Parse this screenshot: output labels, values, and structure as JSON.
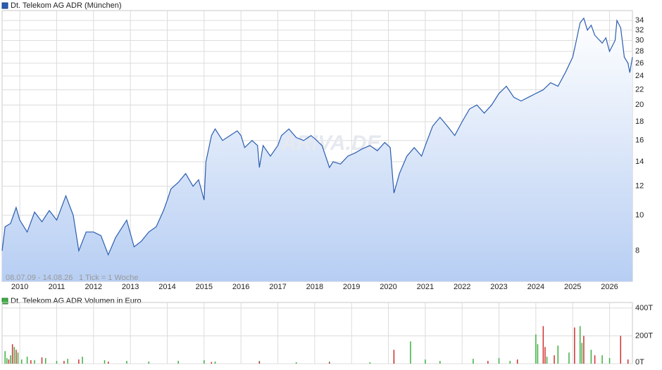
{
  "chart_data": [
    {
      "type": "area",
      "log_y": true,
      "grid": true,
      "range_label": "08.07.09 - 14.08.26",
      "tick_note": "1 Tick = 1 Woche",
      "watermark": "ARIVA.DE",
      "xlim": [
        2009.52,
        2026.62
      ],
      "xticks": [
        2010,
        2011,
        2012,
        2013,
        2014,
        2015,
        2016,
        2017,
        2018,
        2019,
        2020,
        2021,
        2022,
        2023,
        2024,
        2025,
        2026
      ],
      "ylim": [
        6.6,
        36.2
      ],
      "yticks": [
        8,
        10,
        12,
        14,
        16,
        18,
        20,
        22,
        24,
        26,
        28,
        30,
        32,
        34
      ],
      "x": [
        2009.52,
        2009.6,
        2009.75,
        2009.9,
        2010.0,
        2010.2,
        2010.4,
        2010.6,
        2010.8,
        2011.0,
        2011.25,
        2011.45,
        2011.6,
        2011.8,
        2012.0,
        2012.2,
        2012.4,
        2012.6,
        2012.9,
        2013.1,
        2013.3,
        2013.5,
        2013.7,
        2013.9,
        2014.0,
        2014.1,
        2014.3,
        2014.5,
        2014.7,
        2014.85,
        2015.0,
        2015.05,
        2015.2,
        2015.3,
        2015.5,
        2015.7,
        2015.9,
        2016.0,
        2016.1,
        2016.3,
        2016.45,
        2016.5,
        2016.6,
        2016.8,
        2017.0,
        2017.1,
        2017.3,
        2017.5,
        2017.7,
        2017.9,
        2018.0,
        2018.2,
        2018.4,
        2018.5,
        2018.7,
        2018.9,
        2019.1,
        2019.3,
        2019.5,
        2019.7,
        2019.9,
        2020.05,
        2020.15,
        2020.3,
        2020.5,
        2020.7,
        2020.9,
        2021.0,
        2021.2,
        2021.4,
        2021.6,
        2021.8,
        2022.0,
        2022.2,
        2022.4,
        2022.6,
        2022.8,
        2023.0,
        2023.2,
        2023.4,
        2023.6,
        2023.8,
        2024.0,
        2024.2,
        2024.4,
        2024.6,
        2024.8,
        2025.0,
        2025.1,
        2025.2,
        2025.3,
        2025.4,
        2025.5,
        2025.6,
        2025.8,
        2025.9,
        2026.0,
        2026.15,
        2026.2,
        2026.3,
        2026.4,
        2026.5,
        2026.55,
        2026.62
      ],
      "series": [
        {
          "name": "Dt. Telekom AG ADR (München)",
          "color": "#2a5db0",
          "values": [
            8.0,
            9.3,
            9.5,
            10.5,
            9.7,
            9.0,
            10.2,
            9.6,
            10.3,
            9.7,
            11.3,
            10.0,
            8.0,
            9.0,
            9.0,
            8.8,
            7.8,
            8.7,
            9.7,
            8.2,
            8.5,
            9.0,
            9.3,
            10.3,
            11.0,
            11.8,
            12.3,
            13.0,
            12.0,
            12.5,
            11.0,
            14.0,
            16.5,
            17.2,
            16.0,
            16.5,
            17.0,
            16.5,
            15.3,
            16.0,
            15.5,
            13.5,
            15.5,
            14.5,
            15.5,
            16.5,
            17.2,
            16.3,
            16.0,
            16.5,
            16.2,
            15.5,
            13.5,
            14.0,
            13.8,
            14.5,
            14.8,
            15.2,
            15.5,
            15.0,
            15.8,
            15.3,
            11.5,
            13.0,
            14.5,
            15.3,
            14.5,
            15.5,
            17.5,
            18.5,
            17.5,
            16.5,
            18.0,
            19.5,
            20.0,
            19.0,
            20.0,
            21.5,
            22.5,
            21.0,
            20.5,
            21.0,
            21.5,
            22.0,
            23.0,
            22.5,
            24.5,
            27.0,
            30.0,
            33.5,
            34.5,
            32.0,
            33.0,
            31.0,
            29.5,
            30.5,
            28.0,
            30.0,
            34.0,
            32.5,
            27.0,
            26.0,
            24.5,
            27.0
          ]
        }
      ]
    },
    {
      "type": "bar",
      "ylim": [
        0,
        440
      ],
      "yticks": [
        {
          "value": 0,
          "label": "0T"
        },
        {
          "value": 200,
          "label": "200T"
        },
        {
          "value": 400,
          "label": "400T"
        }
      ],
      "series": [
        {
          "name": "Dt. Telekom AG ADR Volumen in Euro",
          "color": "#3cb043",
          "x": [
            2009.6,
            2009.65,
            2009.75,
            2009.85,
            2009.95,
            2010.05,
            2010.2,
            2010.4,
            2010.7,
            2011.0,
            2011.3,
            2011.7,
            2012.3,
            2012.9,
            2013.5,
            2014.3,
            2015.0,
            2015.3,
            2016.5,
            2017.5,
            2018.4,
            2019.5,
            2020.15,
            2020.6,
            2021.0,
            2021.4,
            2022.3,
            2023.0,
            2023.3,
            2024.0,
            2024.05,
            2024.3,
            2024.6,
            2024.9,
            2025.2,
            2025.25,
            2025.5,
            2025.8,
            2026.0,
            2026.3,
            2026.5
          ],
          "values": [
            90,
            40,
            60,
            120,
            80,
            30,
            50,
            25,
            40,
            20,
            35,
            50,
            25,
            20,
            15,
            20,
            25,
            15,
            20,
            10,
            15,
            10,
            30,
            160,
            30,
            20,
            35,
            40,
            20,
            210,
            140,
            50,
            130,
            80,
            270,
            150,
            100,
            60,
            40,
            30,
            20
          ]
        },
        {
          "color": "#d03030",
          "x": [
            2009.7,
            2009.8,
            2009.9,
            2010.3,
            2010.6,
            2011.2,
            2011.6,
            2012.4,
            2015.2,
            2016.5,
            2018.4,
            2020.15,
            2022.7,
            2023.5,
            2024.2,
            2024.25,
            2024.5,
            2025.05,
            2025.3,
            2025.6,
            2026.3,
            2026.5
          ],
          "values": [
            30,
            140,
            100,
            25,
            45,
            20,
            30,
            15,
            12,
            15,
            10,
            100,
            20,
            30,
            270,
            120,
            60,
            260,
            200,
            60,
            200,
            30
          ]
        }
      ]
    }
  ]
}
